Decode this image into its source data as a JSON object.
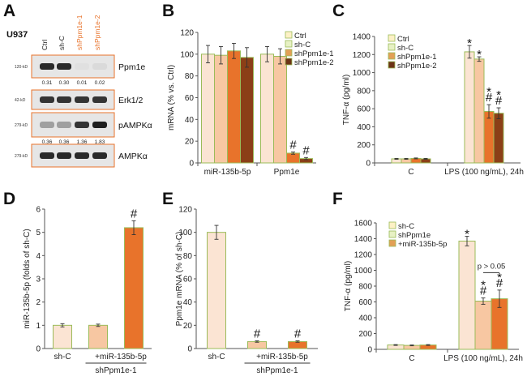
{
  "colors": {
    "ctrl": "#fbe4d3",
    "shc": "#f7c7a2",
    "kd1": "#e8732b",
    "kd2": "#8b3f17",
    "legend_ctrl": "#fdf1c6",
    "legend_shc": "#e7f1c4",
    "legend_kd1": "#e2a056",
    "legend_kd2": "#6c3416",
    "outline": "#9bbb59",
    "orange_label": "#e8732b",
    "blot_border": "#e8732b"
  },
  "panel_labels": [
    "A",
    "B",
    "C",
    "D",
    "E",
    "F"
  ],
  "panel_a": {
    "cell_line": "U937",
    "lanes": [
      "Ctrl",
      "sh-C",
      "shPpm1e-1",
      "shPpm1e-2"
    ],
    "lane_colors": [
      "#222222",
      "#222222",
      "#e8732b",
      "#e8732b"
    ],
    "blots": [
      {
        "name": "Ppm1e",
        "kd": "120-kD",
        "quant": [
          "0.31",
          "0.30",
          "0.01",
          "0.02"
        ],
        "intensity": [
          0.9,
          0.9,
          0.05,
          0.08
        ]
      },
      {
        "name": "Erk1/2",
        "kd": "42-kD",
        "quant": [],
        "intensity": [
          0.85,
          0.85,
          0.85,
          0.85
        ]
      },
      {
        "name": "pAMPKα",
        "kd": "279-kD",
        "quant": [
          "0.36",
          "0.36",
          "1.36",
          "1.83"
        ],
        "intensity": [
          0.35,
          0.35,
          0.85,
          0.95
        ]
      },
      {
        "name": "AMPKα",
        "kd": "279-kD",
        "quant": [],
        "intensity": [
          0.9,
          0.9,
          0.9,
          0.9
        ]
      }
    ]
  },
  "chart_data": [
    {
      "panel": "B",
      "type": "bar",
      "ylabel": "mRNA (% vs. Ctrl)",
      "ylim": [
        0,
        120
      ],
      "yticks": [
        0,
        20,
        40,
        60,
        80,
        100,
        120
      ],
      "categories": [
        "miR-135b-5p",
        "Ppm1e"
      ],
      "legend": [
        "Ctrl",
        "sh-C",
        "shPpm1e-1",
        "shPpm1e-2"
      ],
      "series": [
        {
          "name": "Ctrl",
          "values": [
            100,
            100
          ],
          "errors": [
            8,
            7
          ]
        },
        {
          "name": "sh-C",
          "values": [
            99,
            98
          ],
          "errors": [
            8,
            7
          ]
        },
        {
          "name": "shPpm1e-1",
          "values": [
            103,
            9
          ],
          "errors": [
            7,
            1
          ]
        },
        {
          "name": "shPpm1e-2",
          "values": [
            97,
            4
          ],
          "errors": [
            9,
            1
          ]
        }
      ],
      "annotations": [
        {
          "text": "#",
          "category": 1,
          "series": 2
        },
        {
          "text": "#",
          "category": 1,
          "series": 3
        }
      ]
    },
    {
      "panel": "C",
      "type": "bar",
      "ylabel": "TNF-α (pg/ml)",
      "ylim": [
        0,
        1400
      ],
      "yticks": [
        0,
        200,
        400,
        600,
        800,
        1000,
        1200,
        1400
      ],
      "categories": [
        "C",
        "LPS (100 ng/mL), 24h"
      ],
      "legend": [
        "Ctrl",
        "sh-C",
        "shPpm1e-1",
        "shPpm1e-2"
      ],
      "series": [
        {
          "name": "Ctrl",
          "values": [
            45,
            1230
          ],
          "errors": [
            5,
            70
          ]
        },
        {
          "name": "sh-C",
          "values": [
            45,
            1150
          ],
          "errors": [
            5,
            25
          ]
        },
        {
          "name": "shPpm1e-1",
          "values": [
            50,
            570
          ],
          "errors": [
            5,
            75
          ]
        },
        {
          "name": "shPpm1e-2",
          "values": [
            45,
            550
          ],
          "errors": [
            5,
            60
          ]
        }
      ],
      "annotations": [
        {
          "text": "*",
          "category": 1,
          "series": 0
        },
        {
          "text": "*",
          "category": 1,
          "series": 1
        },
        {
          "text": "*#",
          "category": 1,
          "series": 2
        },
        {
          "text": "*#",
          "category": 1,
          "series": 3
        }
      ]
    },
    {
      "panel": "D",
      "type": "bar",
      "ylabel": "miR-135b-5p (folds of sh-C)",
      "ylim": [
        0,
        6
      ],
      "yticks": [
        0,
        1,
        2,
        3,
        4,
        5,
        6
      ],
      "categories": [
        "sh-C",
        "",
        "+miR-135b-5p"
      ],
      "values": [
        1.0,
        1.0,
        5.2
      ],
      "errors": [
        0.07,
        0.05,
        0.3
      ],
      "colors": [
        "ctrl",
        "shc",
        "kd1"
      ],
      "group_label": "shPpm1e-1",
      "group_span": [
        1,
        2
      ],
      "annotations": [
        {
          "text": "#",
          "index": 2
        }
      ]
    },
    {
      "panel": "E",
      "type": "bar",
      "ylabel": "Ppm1e mRNA (% of sh-C)",
      "ylim": [
        0,
        120
      ],
      "yticks": [
        0,
        20,
        40,
        60,
        80,
        100,
        120
      ],
      "categories": [
        "sh-C",
        "",
        "+miR-135b-5p"
      ],
      "values": [
        100,
        6,
        6
      ],
      "errors": [
        6,
        0.6,
        0.6
      ],
      "colors": [
        "ctrl",
        "shc",
        "kd1"
      ],
      "group_label": "shPpm1e-1",
      "group_span": [
        1,
        2
      ],
      "annotations": [
        {
          "text": "#",
          "index": 1
        },
        {
          "text": "#",
          "index": 2
        }
      ]
    },
    {
      "panel": "F",
      "type": "bar",
      "ylabel": "TNF-α (pg/ml)",
      "ylim": [
        0,
        1600
      ],
      "yticks": [
        0,
        200,
        400,
        600,
        800,
        1000,
        1200,
        1400,
        1600
      ],
      "categories": [
        "C",
        "LPS (100 ng/mL), 24h"
      ],
      "legend": [
        "sh-C",
        "shPpm1e",
        "+miR-135b-5p"
      ],
      "series": [
        {
          "name": "sh-C",
          "values": [
            55,
            1370
          ],
          "errors": [
            5,
            60
          ]
        },
        {
          "name": "shPpm1e",
          "values": [
            50,
            610
          ],
          "errors": [
            5,
            40
          ]
        },
        {
          "name": "+miR-135b-5p",
          "values": [
            55,
            640
          ],
          "errors": [
            5,
            110
          ]
        }
      ],
      "annotations": [
        {
          "text": "*",
          "category": 1,
          "series": 0
        },
        {
          "text": "*#",
          "category": 1,
          "series": 1
        },
        {
          "text": "*#",
          "category": 1,
          "series": 2
        }
      ],
      "comparison": {
        "text": "p > 0.05",
        "from_series": 1,
        "to_series": 2
      }
    }
  ]
}
